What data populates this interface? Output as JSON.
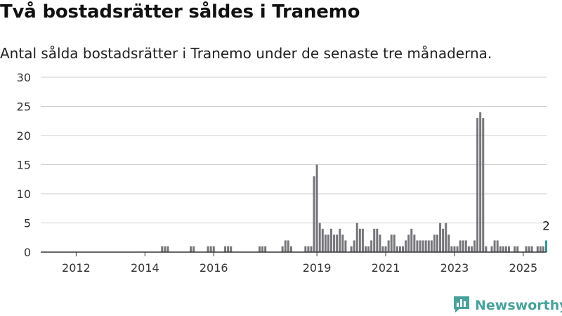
{
  "header": {
    "title": "Två bostadsrätter såldes i Tranemo",
    "subtitle": "Antal sålda bostadsrätter i Tranemo under de senaste tre månaderna."
  },
  "brand": {
    "name": "Newsworthy",
    "logo_icon": "newsworthy-bar-chart-icon",
    "color": "#46a39b"
  },
  "colors": {
    "bar": "#77767b",
    "highlight": "#2a9d96",
    "grid": "#cccccc",
    "axis": "#333333"
  },
  "chart_data": {
    "type": "bar",
    "title": "Två bostadsrätter såldes i Tranemo",
    "subtitle": "Antal sålda bostadsrätter i Tranemo under de senaste tre månaderna.",
    "x_unit": "month",
    "x_start": "2011-08",
    "ylim": [
      0,
      30
    ],
    "yticks": [
      0,
      5,
      10,
      15,
      20,
      25,
      30
    ],
    "xticks": [
      {
        "label": "2012",
        "date": "2012-01"
      },
      {
        "label": "2014",
        "date": "2014-01"
      },
      {
        "label": "2016",
        "date": "2016-01"
      },
      {
        "label": "2019",
        "date": "2019-01"
      },
      {
        "label": "2021",
        "date": "2021-01"
      },
      {
        "label": "2023",
        "date": "2023-01"
      },
      {
        "label": "2025",
        "date": "2025-01"
      }
    ],
    "grid": true,
    "legend": "none",
    "values": [
      0,
      0,
      0,
      0,
      0,
      0,
      0,
      0,
      0,
      0,
      0,
      0,
      0,
      0,
      0,
      0,
      0,
      0,
      0,
      0,
      0,
      0,
      0,
      0,
      0,
      0,
      0,
      0,
      0,
      0,
      0,
      0,
      0,
      0,
      0,
      1,
      1,
      1,
      0,
      0,
      0,
      0,
      0,
      0,
      0,
      1,
      1,
      0,
      0,
      0,
      0,
      1,
      1,
      1,
      0,
      0,
      0,
      1,
      1,
      1,
      0,
      0,
      0,
      0,
      0,
      0,
      0,
      0,
      0,
      1,
      1,
      1,
      0,
      0,
      0,
      0,
      0,
      1,
      2,
      2,
      1,
      0,
      0,
      0,
      0,
      1,
      1,
      1,
      13,
      15,
      5,
      4,
      3,
      3,
      4,
      3,
      3,
      4,
      3,
      2,
      0,
      1,
      2,
      5,
      4,
      4,
      1,
      1,
      2,
      4,
      4,
      3,
      1,
      1,
      2,
      3,
      3,
      1,
      1,
      1,
      2,
      3,
      4,
      3,
      2,
      2,
      2,
      2,
      2,
      2,
      3,
      3,
      5,
      4,
      5,
      3,
      1,
      1,
      1,
      2,
      2,
      2,
      1,
      1,
      2,
      23,
      24,
      23,
      1,
      0,
      1,
      2,
      2,
      1,
      1,
      1,
      1,
      0,
      1,
      1,
      0,
      0,
      1,
      1,
      1,
      0,
      1,
      1,
      1,
      2
    ],
    "highlight_last": true,
    "annotations": [
      {
        "text": "2",
        "target": "last"
      }
    ]
  }
}
